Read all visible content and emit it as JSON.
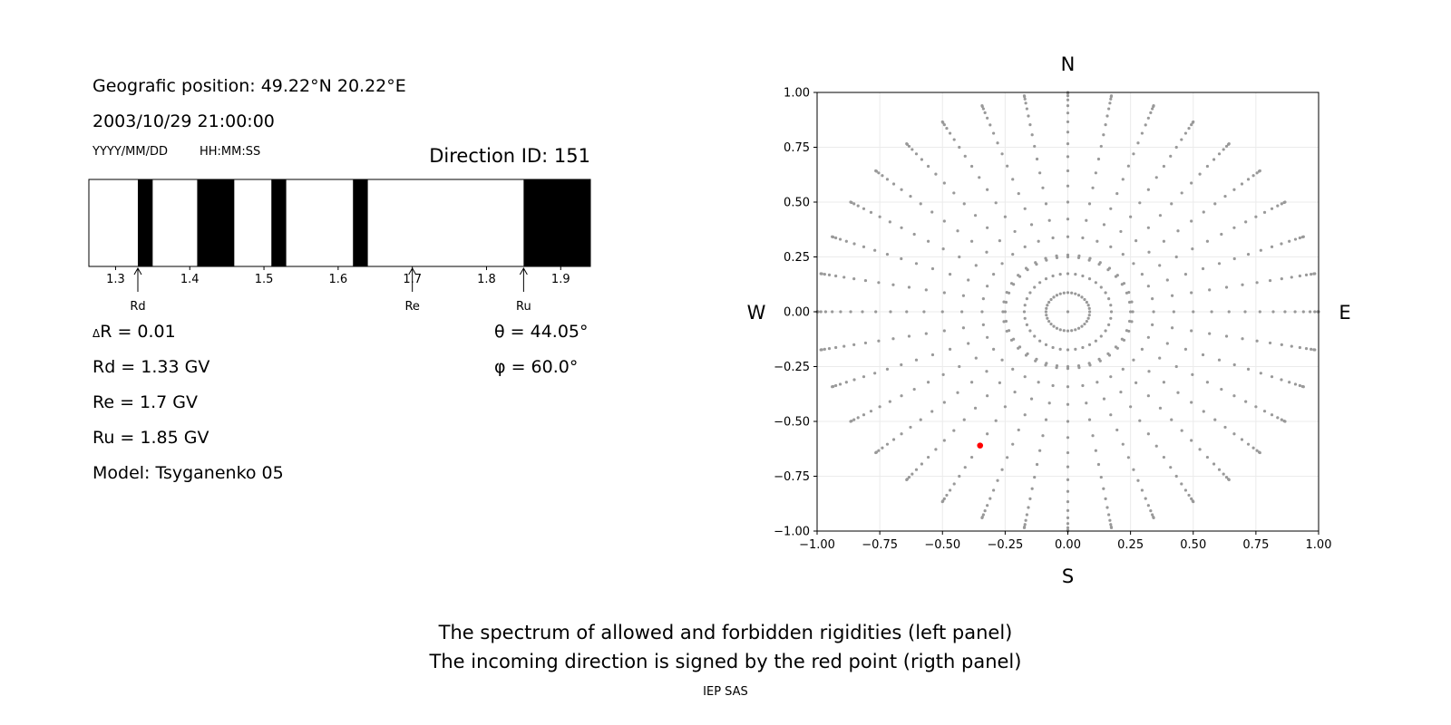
{
  "left_panel": {
    "geo_position": "Geografic position: 49.22°N 20.22°E",
    "datetime": "2003/10/29 21:00:00",
    "date_format": "YYYY/MM/DD",
    "time_format": "HH:MM:SS",
    "direction_id": "Direction ID: 151",
    "delta_r_symbol": "Δ",
    "delta_r": "R = 0.01",
    "rd": "Rd = 1.33 GV",
    "re": "Re = 1.7 GV",
    "ru": "Ru = 1.85 GV",
    "model": "Model: Tsyganenko 05",
    "theta": "θ = 44.05°",
    "phi": "φ = 60.0°"
  },
  "footer": {
    "line1": "The spectrum of allowed and forbidden rigidities (left panel)",
    "line2": "The incoming direction is signed by the red point (rigth panel)",
    "credit": "IEP SAS"
  },
  "chart_data": [
    {
      "type": "bar",
      "name": "rigidity-spectrum",
      "xlim": [
        1.264,
        1.94
      ],
      "xticks": [
        1.3,
        1.4,
        1.5,
        1.6,
        1.7,
        1.8,
        1.9
      ],
      "tick_labels": [
        "1.3",
        "1.4",
        "1.5",
        "1.6",
        "1.7",
        "1.8",
        "1.9"
      ],
      "forbidden_bands": [
        [
          1.33,
          1.35
        ],
        [
          1.41,
          1.46
        ],
        [
          1.51,
          1.53
        ],
        [
          1.62,
          1.64
        ],
        [
          1.85,
          1.94
        ]
      ],
      "markers": [
        {
          "label": "Rd",
          "value": 1.33
        },
        {
          "label": "Re",
          "value": 1.7
        },
        {
          "label": "Ru",
          "value": 1.85
        }
      ],
      "colors": {
        "forbidden": "#000000",
        "allowed": "#ffffff"
      }
    },
    {
      "type": "scatter",
      "name": "incoming-directions",
      "xlim": [
        -1,
        1
      ],
      "ylim": [
        -1,
        1
      ],
      "xticks": [
        -1.0,
        -0.75,
        -0.5,
        -0.25,
        0.0,
        0.25,
        0.5,
        0.75,
        1.0
      ],
      "yticks": [
        -1.0,
        -0.75,
        -0.5,
        -0.25,
        0.0,
        0.25,
        0.5,
        0.75,
        1.0
      ],
      "tick_labels": [
        "−1.00",
        "−0.75",
        "−0.50",
        "−0.25",
        "0.00",
        "0.25",
        "0.50",
        "0.75",
        "1.00"
      ],
      "grid": true,
      "compass": {
        "north": "N",
        "south": "S",
        "west": "W",
        "east": "E"
      },
      "grid_points": {
        "zenith_angles_deg": [
          0,
          5,
          10,
          15,
          20,
          25,
          30,
          35,
          40,
          45,
          50,
          55,
          60,
          65,
          70,
          75,
          80,
          85,
          90
        ],
        "azimuth_step_deg": 10,
        "ring_radii": [
          0.25
        ],
        "ring_point_count": 36,
        "color": "#999999"
      },
      "highlight": {
        "x": -0.35,
        "y": -0.61,
        "color": "#ff0000"
      }
    }
  ]
}
